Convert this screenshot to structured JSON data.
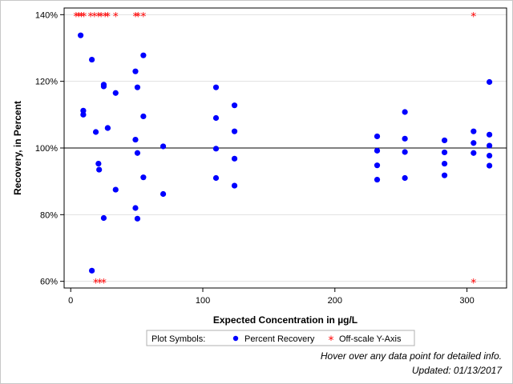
{
  "chart_data": {
    "type": "scatter",
    "xlabel": "Expected Concentration in µg/L",
    "ylabel": "Recovery, in Percent",
    "xlim": [
      -5,
      330
    ],
    "ylim": [
      58,
      142
    ],
    "x_ticks": [
      0,
      100,
      200,
      300
    ],
    "y_ticks": [
      60,
      80,
      100,
      120,
      140
    ],
    "x_tick_labels": [
      "0",
      "100",
      "200",
      "300"
    ],
    "y_tick_labels": [
      "60%",
      "80%",
      "100%",
      "120%",
      "140%"
    ],
    "reference_line_y": 100,
    "grid": "horizontal",
    "legend": {
      "placement": "bottom-center",
      "title": "Plot Symbols:",
      "entries": [
        "Percent Recovery",
        "Off-scale Y-Axis"
      ]
    },
    "colors": {
      "percent_recovery": "#0000ff",
      "off_scale": "#ff0000"
    },
    "series": [
      {
        "name": "Percent Recovery",
        "points": [
          [
            7.5,
            133.8
          ],
          [
            9.5,
            111.2
          ],
          [
            9.5,
            110.0
          ],
          [
            16,
            126.5
          ],
          [
            16,
            63.2
          ],
          [
            19,
            104.8
          ],
          [
            21,
            95.3
          ],
          [
            21.5,
            93.5
          ],
          [
            25,
            118.5
          ],
          [
            25,
            119.0
          ],
          [
            25,
            79.0
          ],
          [
            28,
            106.0
          ],
          [
            28,
            106.0
          ],
          [
            34,
            116.5
          ],
          [
            34,
            87.5
          ],
          [
            49,
            123.0
          ],
          [
            49,
            102.5
          ],
          [
            49,
            82.0
          ],
          [
            50.5,
            118.2
          ],
          [
            50.5,
            98.5
          ],
          [
            50.5,
            78.8
          ],
          [
            55,
            127.8
          ],
          [
            55,
            109.5
          ],
          [
            55,
            91.2
          ],
          [
            70,
            100.5
          ],
          [
            70,
            86.2
          ],
          [
            110,
            118.2
          ],
          [
            110,
            109.0
          ],
          [
            110,
            99.8
          ],
          [
            110,
            91.0
          ],
          [
            124,
            112.8
          ],
          [
            124,
            105.0
          ],
          [
            124,
            96.8
          ],
          [
            124,
            88.7
          ],
          [
            232,
            103.5
          ],
          [
            232,
            99.2
          ],
          [
            232,
            94.8
          ],
          [
            232,
            90.5
          ],
          [
            253,
            110.8
          ],
          [
            253,
            102.8
          ],
          [
            253,
            98.8
          ],
          [
            253,
            91.0
          ],
          [
            283,
            102.3
          ],
          [
            283,
            98.7
          ],
          [
            283,
            95.3
          ],
          [
            283,
            91.8
          ],
          [
            305,
            105.0
          ],
          [
            305,
            101.5
          ],
          [
            305,
            98.5
          ],
          [
            317,
            119.8
          ],
          [
            317,
            104.0
          ],
          [
            317,
            100.7
          ],
          [
            317,
            97.7
          ],
          [
            317,
            94.7
          ]
        ]
      },
      {
        "name": "Off-scale Y-Axis",
        "points": [
          [
            4,
            140
          ],
          [
            6,
            140
          ],
          [
            8,
            140
          ],
          [
            10,
            140
          ],
          [
            15,
            140
          ],
          [
            18,
            140
          ],
          [
            21,
            140
          ],
          [
            23,
            140
          ],
          [
            26,
            140
          ],
          [
            28,
            140
          ],
          [
            34,
            140
          ],
          [
            49,
            140
          ],
          [
            51,
            140
          ],
          [
            55,
            140
          ],
          [
            305,
            140
          ],
          [
            19,
            60
          ],
          [
            22,
            60
          ],
          [
            25,
            60
          ],
          [
            305,
            60
          ]
        ]
      }
    ]
  },
  "footer": {
    "hover_note": "Hover over any data point for detailed info.",
    "updated": "Updated: 01/13/2017"
  }
}
